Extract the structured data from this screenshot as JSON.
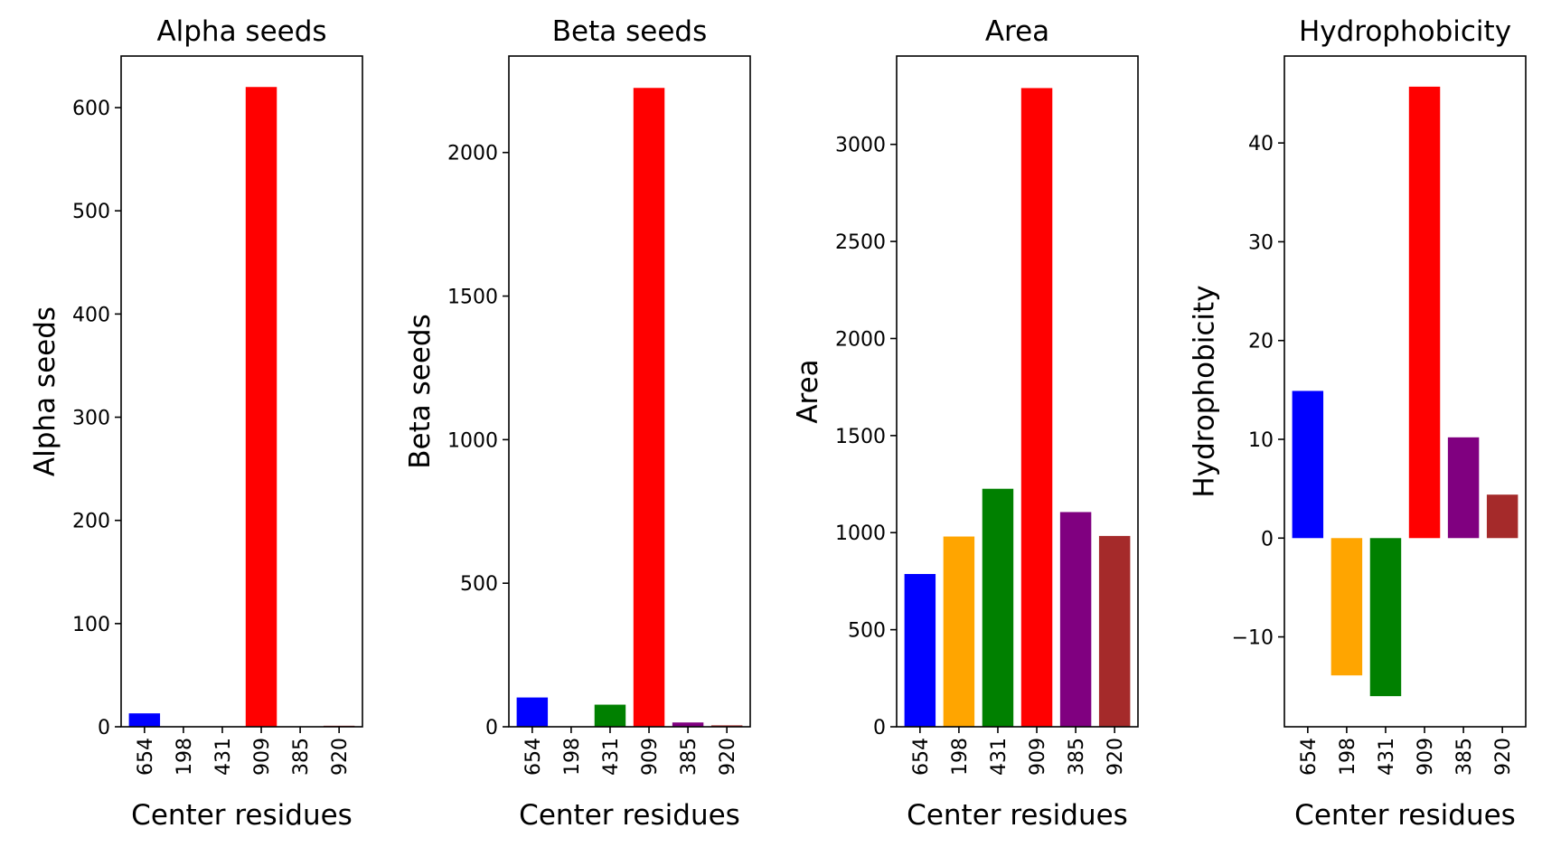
{
  "chart_data": [
    {
      "type": "bar",
      "title": "Alpha seeds",
      "xlabel": "Center residues",
      "ylabel": "Alpha seeds",
      "categories": [
        "654",
        "198",
        "431",
        "909",
        "385",
        "920"
      ],
      "values": [
        13,
        0,
        0,
        620,
        0,
        1
      ],
      "colors": [
        "#0000ff",
        "#ffa500",
        "#008000",
        "#ff0000",
        "#800080",
        "#a52a2a"
      ],
      "ylim": [
        0,
        650
      ],
      "yticks": [
        0,
        100,
        200,
        300,
        400,
        500,
        600
      ],
      "ytick_labels": [
        "0",
        "100",
        "200",
        "300",
        "400",
        "500",
        "600"
      ]
    },
    {
      "type": "bar",
      "title": "Beta seeds",
      "xlabel": "Center residues",
      "ylabel": "Beta seeds",
      "categories": [
        "654",
        "198",
        "431",
        "909",
        "385",
        "920"
      ],
      "values": [
        102,
        0,
        77,
        2225,
        15,
        5
      ],
      "colors": [
        "#0000ff",
        "#ffa500",
        "#008000",
        "#ff0000",
        "#800080",
        "#a52a2a"
      ],
      "ylim": [
        0,
        2336
      ],
      "yticks": [
        0,
        500,
        1000,
        1500,
        2000
      ],
      "ytick_labels": [
        "0",
        "500",
        "1000",
        "1500",
        "2000"
      ]
    },
    {
      "type": "bar",
      "title": "Area",
      "xlabel": "Center residues",
      "ylabel": "Area",
      "categories": [
        "654",
        "198",
        "431",
        "909",
        "385",
        "920"
      ],
      "values": [
        787,
        980,
        1226,
        3290,
        1106,
        983
      ],
      "colors": [
        "#0000ff",
        "#ffa500",
        "#008000",
        "#ff0000",
        "#800080",
        "#a52a2a"
      ],
      "ylim": [
        0,
        3455
      ],
      "yticks": [
        0,
        500,
        1000,
        1500,
        2000,
        2500,
        3000
      ],
      "ytick_labels": [
        "0",
        "500",
        "1000",
        "1500",
        "2000",
        "2500",
        "3000"
      ]
    },
    {
      "type": "bar",
      "title": "Hydrophobicity",
      "xlabel": "Center residues",
      "ylabel": "Hydrophobicity",
      "categories": [
        "654",
        "198",
        "431",
        "909",
        "385",
        "920"
      ],
      "values": [
        14.9,
        -13.9,
        -16.0,
        45.7,
        10.2,
        4.4
      ],
      "colors": [
        "#0000ff",
        "#ffa500",
        "#008000",
        "#ff0000",
        "#800080",
        "#a52a2a"
      ],
      "ylim": [
        -19.1,
        48.8
      ],
      "yticks": [
        -10,
        0,
        10,
        20,
        30,
        40
      ],
      "ytick_labels": [
        "−10",
        "0",
        "10",
        "20",
        "30",
        "40"
      ]
    }
  ]
}
